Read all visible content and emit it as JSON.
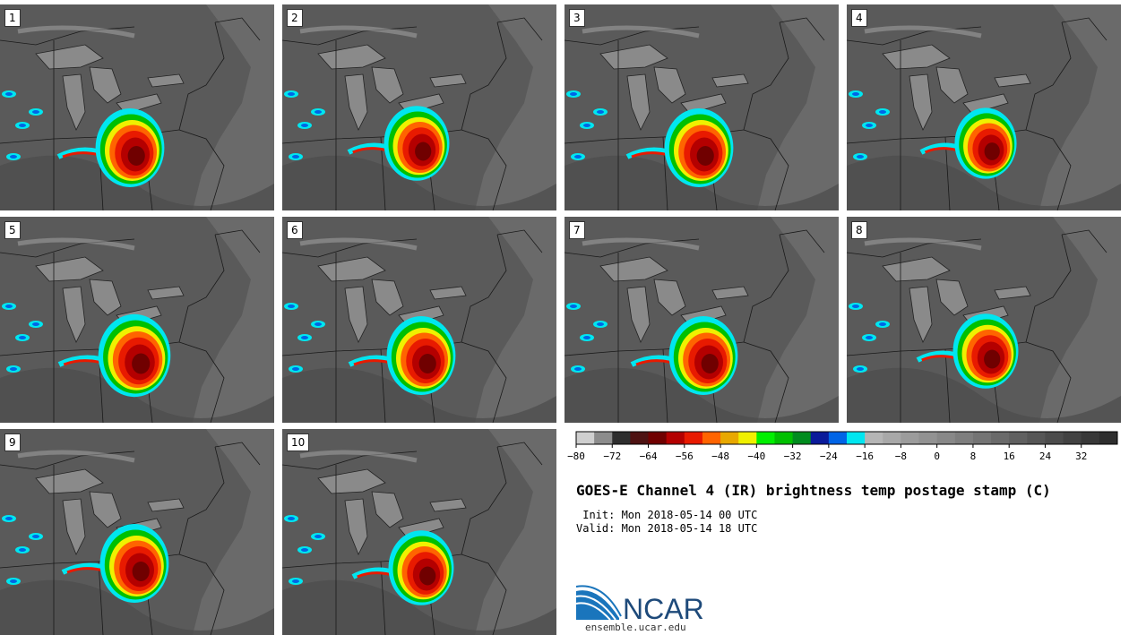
{
  "title": "GOES-E Channel 4 (IR) brightness temp postage stamp (C)",
  "init": " Init: Mon 2018-05-14 00 UTC",
  "valid": "Valid: Mon 2018-05-14 18 UTC",
  "panels": [
    "1",
    "2",
    "3",
    "4",
    "5",
    "6",
    "7",
    "8",
    "9",
    "10"
  ],
  "colorbar": {
    "ticks": [
      "-80",
      "-72",
      "-64",
      "-56",
      "-48",
      "-40",
      "-32",
      "-24",
      "-16",
      "-8",
      "0",
      "8",
      "16",
      "24",
      "32"
    ],
    "colors": [
      "#cfcfcf",
      "#8c8c8c",
      "#2e2e2e",
      "#4e1212",
      "#700000",
      "#b40000",
      "#e81a00",
      "#ff6400",
      "#e8a800",
      "#f0f000",
      "#00f000",
      "#00c000",
      "#008c1e",
      "#0a1a9a",
      "#0064e6",
      "#00e6f0",
      "#b5b5b5",
      "#a8a8a8",
      "#9c9c9c",
      "#929292",
      "#888888",
      "#7e7e7e",
      "#747474",
      "#6a6a6a",
      "#606060",
      "#565656",
      "#4c4c4c",
      "#424242",
      "#383838",
      "#2e2e2e"
    ]
  },
  "logo_text": "NCAR",
  "url": "ensemble.ucar.edu"
}
